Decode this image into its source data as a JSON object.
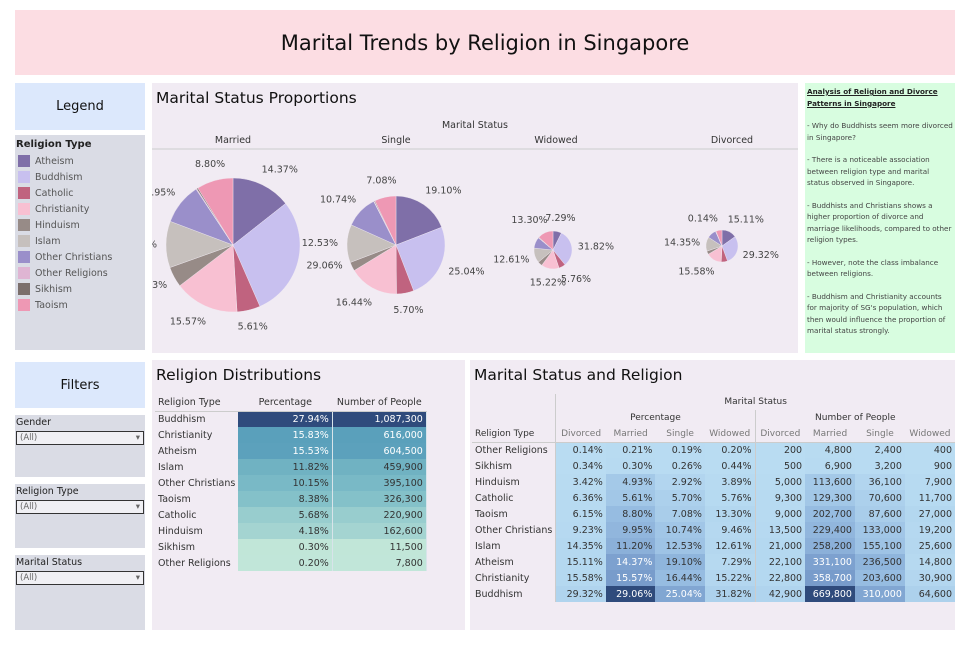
{
  "title": "Marital Trends by Religion in Singapore",
  "legend": {
    "header": "Legend",
    "title": "Religion Type",
    "items": [
      {
        "label": "Atheism",
        "color": "#7f6fa8"
      },
      {
        "label": "Buddhism",
        "color": "#c8c0ef"
      },
      {
        "label": "Catholic",
        "color": "#c0637f"
      },
      {
        "label": "Christianity",
        "color": "#f8c0d2"
      },
      {
        "label": "Hinduism",
        "color": "#978b87"
      },
      {
        "label": "Islam",
        "color": "#c6c0bd"
      },
      {
        "label": "Other Christians",
        "color": "#9a8fca"
      },
      {
        "label": "Other Religions",
        "color": "#dfb5d3"
      },
      {
        "label": "Sikhism",
        "color": "#7b6f6c"
      },
      {
        "label": "Taoism",
        "color": "#ee98b4"
      }
    ]
  },
  "filters": {
    "header": "Filters",
    "items": [
      {
        "label": "Gender",
        "value": "(All)"
      },
      {
        "label": "Religion Type",
        "value": "(All)"
      },
      {
        "label": "Marital Status",
        "value": "(All)"
      }
    ]
  },
  "pies": {
    "title": "Marital Status Proportions",
    "group_label": "Marital Status",
    "charts": [
      {
        "label": "Married",
        "values": [
          14.37,
          29.06,
          5.61,
          15.57,
          4.93,
          11.2,
          9.95,
          0.21,
          0.3,
          8.8
        ],
        "shown": [
          0,
          1,
          2,
          3,
          4,
          5,
          6,
          9
        ]
      },
      {
        "label": "Single",
        "values": [
          19.1,
          25.04,
          5.7,
          16.44,
          2.92,
          12.53,
          10.74,
          0.19,
          0.26,
          7.08
        ],
        "shown": [
          0,
          1,
          2,
          3,
          5,
          6,
          9
        ]
      },
      {
        "label": "Widowed",
        "values": [
          7.29,
          31.82,
          5.76,
          15.22,
          3.89,
          12.61,
          9.46,
          0.2,
          0.44,
          13.3
        ],
        "shown": [
          0,
          1,
          2,
          3,
          5,
          9
        ]
      },
      {
        "label": "Divorced",
        "values": [
          15.11,
          29.32,
          6.36,
          15.58,
          3.42,
          14.35,
          9.23,
          0.14,
          0.34,
          6.15
        ],
        "shown": [
          0,
          1,
          3,
          5,
          7
        ]
      }
    ]
  },
  "analysis": {
    "title": "Analysis of Religion and Divorce Patterns in Singapore",
    "points": [
      "- Why do Buddhists seem more divorced in Singapore?",
      "- There is a noticeable association between religion type and marital status observed in Singapore.",
      "- Buddhists and Christians shows a higher proportion of divorce and marriage likelihoods, compared to other religion types.",
      "- However, note the class imbalance between religions.",
      "- Buddhism and Christianity accounts for majority of SG's population, which then would influence the proportion of marital status strongly."
    ]
  },
  "distribution": {
    "title": "Religion Distributions",
    "headers": [
      "Religion Type",
      "Percentage",
      "Number of People"
    ],
    "rows": [
      [
        "Buddhism",
        "27.94%",
        "1,087,300",
        27.94
      ],
      [
        "Christianity",
        "15.83%",
        "616,000",
        15.83
      ],
      [
        "Atheism",
        "15.53%",
        "604,500",
        15.53
      ],
      [
        "Islam",
        "11.82%",
        "459,900",
        11.82
      ],
      [
        "Other Christians",
        "10.15%",
        "395,100",
        10.15
      ],
      [
        "Taoism",
        "8.38%",
        "326,300",
        8.38
      ],
      [
        "Catholic",
        "5.68%",
        "220,900",
        5.68
      ],
      [
        "Hinduism",
        "4.18%",
        "162,600",
        4.18
      ],
      [
        "Sikhism",
        "0.30%",
        "11,500",
        0.3
      ],
      [
        "Other Religions",
        "0.20%",
        "7,800",
        0.2
      ]
    ]
  },
  "marital": {
    "title": "Marital Status and Religion",
    "group": "Marital Status",
    "measures": [
      "Percentage",
      "Number of People"
    ],
    "row_header": "Religion Type",
    "statuses": [
      "Divorced",
      "Married",
      "Single",
      "Widowed"
    ],
    "rows": [
      {
        "name": "Other Religions",
        "pct": [
          "0.14%",
          "0.21%",
          "0.19%",
          "0.20%"
        ],
        "num": [
          "200",
          "4,800",
          "2,400",
          "400"
        ]
      },
      {
        "name": "Sikhism",
        "pct": [
          "0.34%",
          "0.30%",
          "0.26%",
          "0.44%"
        ],
        "num": [
          "500",
          "6,900",
          "3,200",
          "900"
        ]
      },
      {
        "name": "Hinduism",
        "pct": [
          "3.42%",
          "4.93%",
          "2.92%",
          "3.89%"
        ],
        "num": [
          "5,000",
          "113,600",
          "36,100",
          "7,900"
        ]
      },
      {
        "name": "Catholic",
        "pct": [
          "6.36%",
          "5.61%",
          "5.70%",
          "5.76%"
        ],
        "num": [
          "9,300",
          "129,300",
          "70,600",
          "11,700"
        ]
      },
      {
        "name": "Taoism",
        "pct": [
          "6.15%",
          "8.80%",
          "7.08%",
          "13.30%"
        ],
        "num": [
          "9,000",
          "202,700",
          "87,600",
          "27,000"
        ]
      },
      {
        "name": "Other Christians",
        "pct": [
          "9.23%",
          "9.95%",
          "10.74%",
          "9.46%"
        ],
        "num": [
          "13,500",
          "229,400",
          "133,000",
          "19,200"
        ]
      },
      {
        "name": "Islam",
        "pct": [
          "14.35%",
          "11.20%",
          "12.53%",
          "12.61%"
        ],
        "num": [
          "21,000",
          "258,200",
          "155,100",
          "25,600"
        ]
      },
      {
        "name": "Atheism",
        "pct": [
          "15.11%",
          "14.37%",
          "19.10%",
          "7.29%"
        ],
        "num": [
          "22,100",
          "331,100",
          "236,500",
          "14,800"
        ]
      },
      {
        "name": "Christianity",
        "pct": [
          "15.58%",
          "15.57%",
          "16.44%",
          "15.22%"
        ],
        "num": [
          "22,800",
          "358,700",
          "203,600",
          "30,900"
        ]
      },
      {
        "name": "Buddhism",
        "pct": [
          "29.32%",
          "29.06%",
          "25.04%",
          "31.82%"
        ],
        "num": [
          "42,900",
          "669,800",
          "310,000",
          "64,600"
        ]
      }
    ]
  }
}
